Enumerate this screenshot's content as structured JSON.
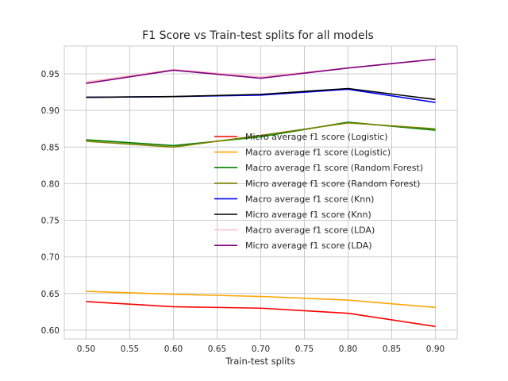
{
  "chart_data": {
    "type": "line",
    "title": "F1 Score vs Train-test splits for all models",
    "xlabel": "Train-test splits",
    "ylabel": "",
    "x": [
      0.5,
      0.6,
      0.7,
      0.8,
      0.9
    ],
    "xlim": [
      0.475,
      0.925
    ],
    "ylim": [
      0.588,
      0.988
    ],
    "xticks": [
      0.5,
      0.55,
      0.6,
      0.65,
      0.7,
      0.75,
      0.8,
      0.85,
      0.9
    ],
    "xtick_labels": [
      "0.50",
      "0.55",
      "0.60",
      "0.65",
      "0.70",
      "0.75",
      "0.80",
      "0.85",
      "0.90"
    ],
    "yticks": [
      0.6,
      0.65,
      0.7,
      0.75,
      0.8,
      0.85,
      0.9,
      0.95
    ],
    "ytick_labels": [
      "0.60",
      "0.65",
      "0.70",
      "0.75",
      "0.80",
      "0.85",
      "0.90",
      "0.95"
    ],
    "grid": true,
    "legend_placement": "center-right",
    "series": [
      {
        "name": "Micro average f1 score (Logistic)",
        "color": "#ff0000",
        "values": [
          0.639,
          0.632,
          0.63,
          0.623,
          0.605
        ]
      },
      {
        "name": "Macro average f1 score (Logistic)",
        "color": "#ffa500",
        "values": [
          0.653,
          0.649,
          0.646,
          0.641,
          0.631
        ]
      },
      {
        "name": "Macro average f1 score (Random Forest)",
        "color": "#008000",
        "values": [
          0.86,
          0.852,
          0.864,
          0.884,
          0.873
        ]
      },
      {
        "name": "Micro average f1 score (Random Forest)",
        "color": "#808000",
        "values": [
          0.858,
          0.85,
          0.866,
          0.883,
          0.875
        ]
      },
      {
        "name": "Macro average f1 score (Knn)",
        "color": "#0000ff",
        "values": [
          0.918,
          0.919,
          0.921,
          0.929,
          0.911
        ]
      },
      {
        "name": "Micro average f1 score (Knn)",
        "color": "#000000",
        "values": [
          0.918,
          0.919,
          0.922,
          0.93,
          0.915
        ]
      },
      {
        "name": "Macro average f1 score (LDA)",
        "color": "#ffc0cb",
        "values": [
          0.939,
          0.956,
          0.946,
          0.958,
          0.97
        ]
      },
      {
        "name": "Micro average f1 score (LDA)",
        "color": "#800080",
        "values": [
          0.937,
          0.955,
          0.944,
          0.958,
          0.97
        ]
      }
    ]
  }
}
